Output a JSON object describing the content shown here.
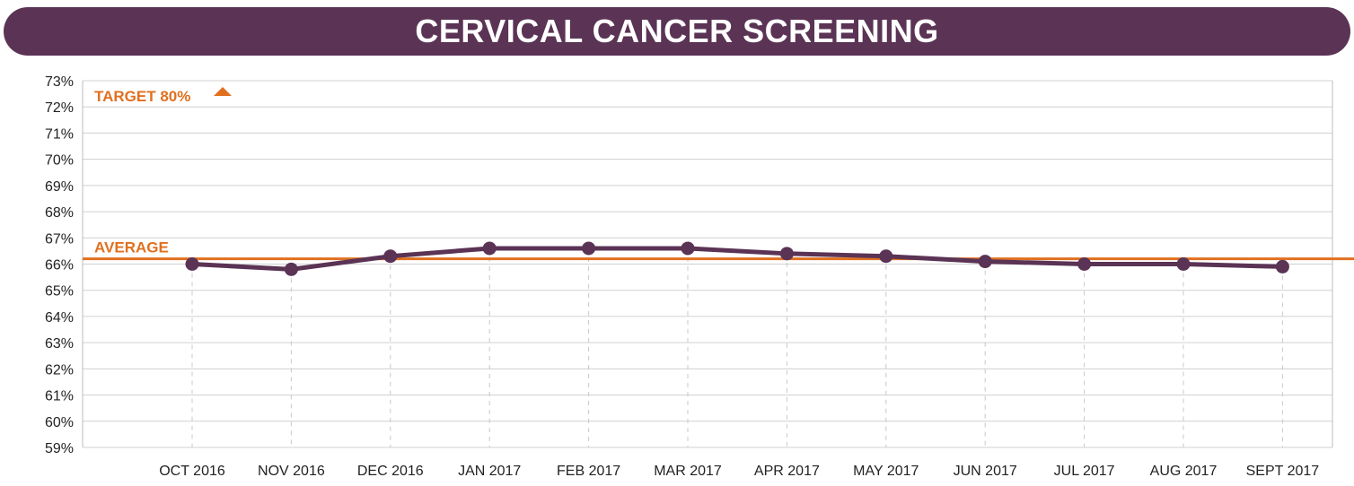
{
  "header": {
    "title": "CERVICAL CANCER SCREENING"
  },
  "colors": {
    "banner": "#5a3355",
    "series": "#5a3355",
    "reference": "#e07020",
    "grid": "#d0d0d0"
  },
  "chart_data": {
    "type": "line",
    "title": "CERVICAL CANCER SCREENING",
    "xlabel": "",
    "ylabel": "",
    "x": [
      "OCT 2016",
      "NOV 2016",
      "DEC 2016",
      "JAN 2017",
      "FEB 2017",
      "MAR 2017",
      "APR 2017",
      "MAY 2017",
      "JUN 2017",
      "JUL 2017",
      "AUG 2017",
      "SEPT 2017"
    ],
    "series": [
      {
        "values": [
          66.0,
          65.8,
          66.3,
          66.6,
          66.6,
          66.6,
          66.4,
          66.3,
          66.1,
          66.0,
          66.0,
          65.9
        ]
      }
    ],
    "ylim": [
      59,
      73
    ],
    "yticks": [
      "59%",
      "60%",
      "61%",
      "62%",
      "63%",
      "64%",
      "65%",
      "66%",
      "67%",
      "68%",
      "69%",
      "70%",
      "71%",
      "72%",
      "73%"
    ],
    "reference_lines": [
      {
        "label": "AVERAGE",
        "value": 66.2
      }
    ],
    "target": {
      "label": "TARGET 80%",
      "value": 80,
      "marker": "up-triangle"
    },
    "grid": true,
    "legend": "none"
  }
}
